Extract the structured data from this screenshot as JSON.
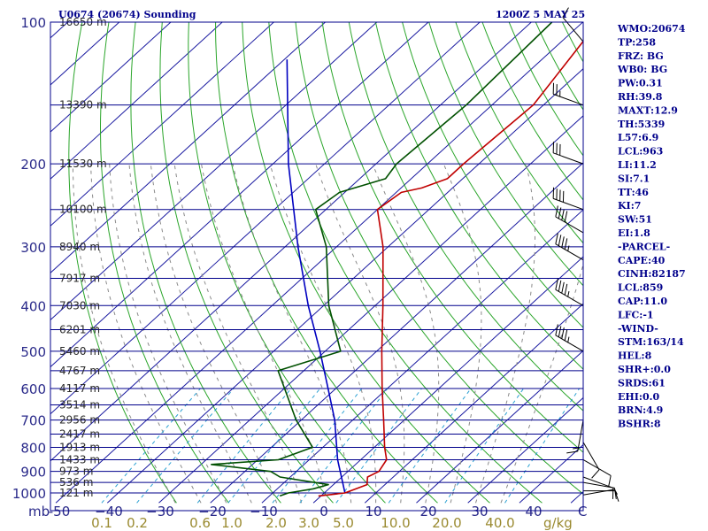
{
  "header": {
    "station": "U0674 (20674) Sounding",
    "time": "1200Z  5 MAY 25"
  },
  "chart_data": {
    "type": "skew-t",
    "pressure_unit_label": "mb",
    "pressure_levels": [
      100,
      200,
      300,
      400,
      500,
      600,
      700,
      800,
      900,
      1000
    ],
    "pressure_range": [
      100,
      1050
    ],
    "temperature_ticks": [
      -50,
      -40,
      -30,
      -20,
      -10,
      0,
      10,
      20,
      30,
      40
    ],
    "temperature_tick_labels": [
      "-50",
      "−40",
      "−30",
      "−20",
      "−10",
      "0",
      "10",
      "20",
      "30",
      "40"
    ],
    "temperature_unit_label": "C",
    "mixing_ratio_ticks": [
      "0.1",
      "0.2",
      "0.6",
      "1.0",
      "2.0",
      "3.0",
      "5.0",
      "10.0",
      "20.0",
      "40.0"
    ],
    "mixing_ratio_values": [
      0.1,
      0.2,
      0.6,
      1.0,
      2.0,
      3.0,
      5.0,
      10.0,
      20.0,
      40.0
    ],
    "mixing_ratio_unit_label": "g/kg",
    "heights": [
      {
        "p": 100,
        "label": "16650 m"
      },
      {
        "p": 150,
        "label": "13390 m"
      },
      {
        "p": 200,
        "label": "11530 m"
      },
      {
        "p": 250,
        "label": "10100 m"
      },
      {
        "p": 300,
        "label": "8940 m"
      },
      {
        "p": 350,
        "label": "7917 m"
      },
      {
        "p": 400,
        "label": "7030 m"
      },
      {
        "p": 450,
        "label": "6201 m"
      },
      {
        "p": 500,
        "label": "5460 m"
      },
      {
        "p": 550,
        "label": "4767 m"
      },
      {
        "p": 600,
        "label": "4117 m"
      },
      {
        "p": 650,
        "label": "3514 m"
      },
      {
        "p": 700,
        "label": "2956 m"
      },
      {
        "p": 750,
        "label": "2417 m"
      },
      {
        "p": 800,
        "label": "1913 m"
      },
      {
        "p": 850,
        "label": "1433 m"
      },
      {
        "p": 900,
        "label": "973 m"
      },
      {
        "p": 950,
        "label": "536 m"
      },
      {
        "p": 1000,
        "label": "121 m"
      }
    ],
    "temperature_profile": [
      {
        "p": 1015,
        "t": -0.5
      },
      {
        "p": 1000,
        "t": 4.0
      },
      {
        "p": 960,
        "t": 6.5
      },
      {
        "p": 925,
        "t": 5.0
      },
      {
        "p": 900,
        "t": 6.0
      },
      {
        "p": 850,
        "t": 5.0
      },
      {
        "p": 800,
        "t": 2.0
      },
      {
        "p": 700,
        "t": -4.0
      },
      {
        "p": 600,
        "t": -11.0
      },
      {
        "p": 500,
        "t": -19.0
      },
      {
        "p": 400,
        "t": -28.5
      },
      {
        "p": 300,
        "t": -41.0
      },
      {
        "p": 250,
        "t": -50.0
      },
      {
        "p": 230,
        "t": -49.0
      },
      {
        "p": 225,
        "t": -46.0
      },
      {
        "p": 215,
        "t": -43.0
      },
      {
        "p": 200,
        "t": -43.0
      },
      {
        "p": 150,
        "t": -42.0
      },
      {
        "p": 100,
        "t": -47.0
      }
    ],
    "dewpoint_profile": [
      {
        "p": 1015,
        "t": -8.0
      },
      {
        "p": 1000,
        "t": -7.0
      },
      {
        "p": 980,
        "t": -3.0
      },
      {
        "p": 960,
        "t": -1.0
      },
      {
        "p": 925,
        "t": -12.0
      },
      {
        "p": 900,
        "t": -15.0
      },
      {
        "p": 870,
        "t": -28.0
      },
      {
        "p": 850,
        "t": -16.0
      },
      {
        "p": 800,
        "t": -12.0
      },
      {
        "p": 700,
        "t": -21.0
      },
      {
        "p": 550,
        "t": -35.0
      },
      {
        "p": 500,
        "t": -27.0
      },
      {
        "p": 400,
        "t": -39.0
      },
      {
        "p": 300,
        "t": -52.0
      },
      {
        "p": 250,
        "t": -62.0
      },
      {
        "p": 230,
        "t": -61.0
      },
      {
        "p": 215,
        "t": -55.0
      },
      {
        "p": 200,
        "t": -56.0
      },
      {
        "p": 150,
        "t": -55.0
      },
      {
        "p": 100,
        "t": -56.0
      }
    ],
    "parcel_profile": [
      {
        "p": 1000,
        "t": 4.0
      },
      {
        "p": 850,
        "t": -4.5
      },
      {
        "p": 700,
        "t": -13.5
      },
      {
        "p": 600,
        "t": -21.5
      },
      {
        "p": 500,
        "t": -31.0
      },
      {
        "p": 400,
        "t": -43.0
      },
      {
        "p": 300,
        "t": -57.5
      },
      {
        "p": 200,
        "t": -77.0
      },
      {
        "p": 120,
        "t": -99.5
      }
    ],
    "dry_adiabats_theta_C": [
      -30,
      -20,
      -10,
      0,
      10,
      20,
      30,
      40,
      50,
      60,
      70,
      80,
      90,
      100,
      110,
      120,
      130,
      140,
      150,
      160,
      170,
      180
    ],
    "moist_adiabats_T1000_C": [
      -30,
      -25,
      -20,
      -15,
      -10,
      -5,
      0,
      5,
      10,
      15,
      20,
      25,
      30,
      35
    ],
    "winds": [
      {
        "p": 1010,
        "dir": 80,
        "spd": 5
      },
      {
        "p": 990,
        "dir": 90,
        "spd": 10
      },
      {
        "p": 950,
        "dir": 100,
        "spd": 10
      },
      {
        "p": 925,
        "dir": 110,
        "spd": 10
      },
      {
        "p": 850,
        "dir": 120,
        "spd": 10
      },
      {
        "p": 780,
        "dir": 150,
        "spd": 10
      },
      {
        "p": 700,
        "dir": 190,
        "spd": 15
      },
      {
        "p": 500,
        "dir": 300,
        "spd": 45
      },
      {
        "p": 400,
        "dir": 300,
        "spd": 45
      },
      {
        "p": 320,
        "dir": 300,
        "spd": 45
      },
      {
        "p": 280,
        "dir": 300,
        "spd": 40
      },
      {
        "p": 250,
        "dir": 290,
        "spd": 40
      },
      {
        "p": 200,
        "dir": 290,
        "spd": 30
      },
      {
        "p": 150,
        "dir": 290,
        "spd": 25
      },
      {
        "p": 110,
        "dir": 320,
        "spd": 10
      }
    ],
    "colors": {
      "border": "#00008b",
      "isobar": "#00008b",
      "isotherm": "#1a1aa0",
      "dry_adiabat": "#2aa52a",
      "moist_adiabat": "#8a8a8a",
      "mixing_ratio": "#2aa0d2",
      "temperature": "#c00000",
      "dewpoint": "#005000",
      "parcel": "#0000c0",
      "wind": "#000000"
    }
  },
  "indices": [
    "WMO:20674",
    "TP:258",
    "FRZ: BG",
    "WB0: BG",
    "PW:0.31",
    "RH:39.8",
    "MAXT:12.9",
    "TH:5339",
    "L57:6.9",
    "LCL:963",
    "LI:11.2",
    "SI:7.1",
    "TT:46",
    "KI:7",
    "SW:51",
    "EI:1.8",
    "-PARCEL-",
    "CAPE:40",
    "CINH:82187",
    "LCL:859",
    "CAP:11.0",
    "LFC:-1",
    "-WIND-",
    "STM:163/14",
    "HEL:8",
    "SHR+:0.0",
    "SRDS:61",
    "EHI:0.0",
    "BRN:4.9",
    "BSHR:8"
  ]
}
